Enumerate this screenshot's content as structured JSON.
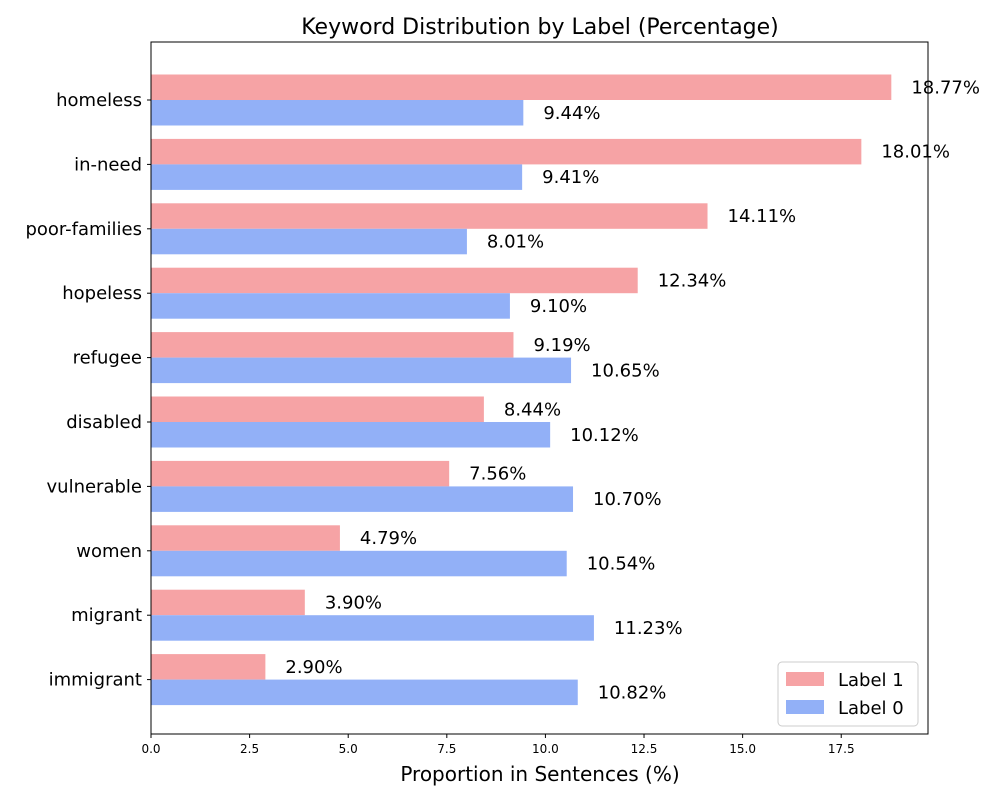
{
  "chart_data": {
    "type": "bar",
    "orientation": "horizontal",
    "title": "Keyword Distribution by Label (Percentage)",
    "xlabel": "Proportion in Sentences (%)",
    "ylabel": "",
    "xlim": [
      0,
      19.7
    ],
    "xticks": [
      0.0,
      2.5,
      5.0,
      7.5,
      10.0,
      12.5,
      15.0,
      17.5
    ],
    "xtick_labels": [
      "0.0",
      "2.5",
      "5.0",
      "7.5",
      "10.0",
      "12.5",
      "15.0",
      "17.5"
    ],
    "grid": false,
    "legend_position": "bottom-right",
    "categories": [
      "homeless",
      "in-need",
      "poor-families",
      "hopeless",
      "refugee",
      "disabled",
      "vulnerable",
      "women",
      "migrant",
      "immigrant"
    ],
    "series": [
      {
        "name": "Label 1",
        "color": "#f6a3a5",
        "values": [
          18.77,
          18.01,
          14.11,
          12.34,
          9.19,
          8.44,
          7.56,
          4.79,
          3.9,
          2.9
        ],
        "labels": [
          "18.77%",
          "18.01%",
          "14.11%",
          "12.34%",
          "9.19%",
          "8.44%",
          "7.56%",
          "4.79%",
          "3.90%",
          "2.90%"
        ]
      },
      {
        "name": "Label 0",
        "color": "#92b0f7",
        "values": [
          9.44,
          9.41,
          8.01,
          9.1,
          10.65,
          10.12,
          10.7,
          10.54,
          11.23,
          10.82
        ],
        "labels": [
          "9.44%",
          "9.41%",
          "8.01%",
          "9.10%",
          "10.65%",
          "10.12%",
          "10.70%",
          "10.54%",
          "11.23%",
          "10.82%"
        ]
      }
    ]
  }
}
